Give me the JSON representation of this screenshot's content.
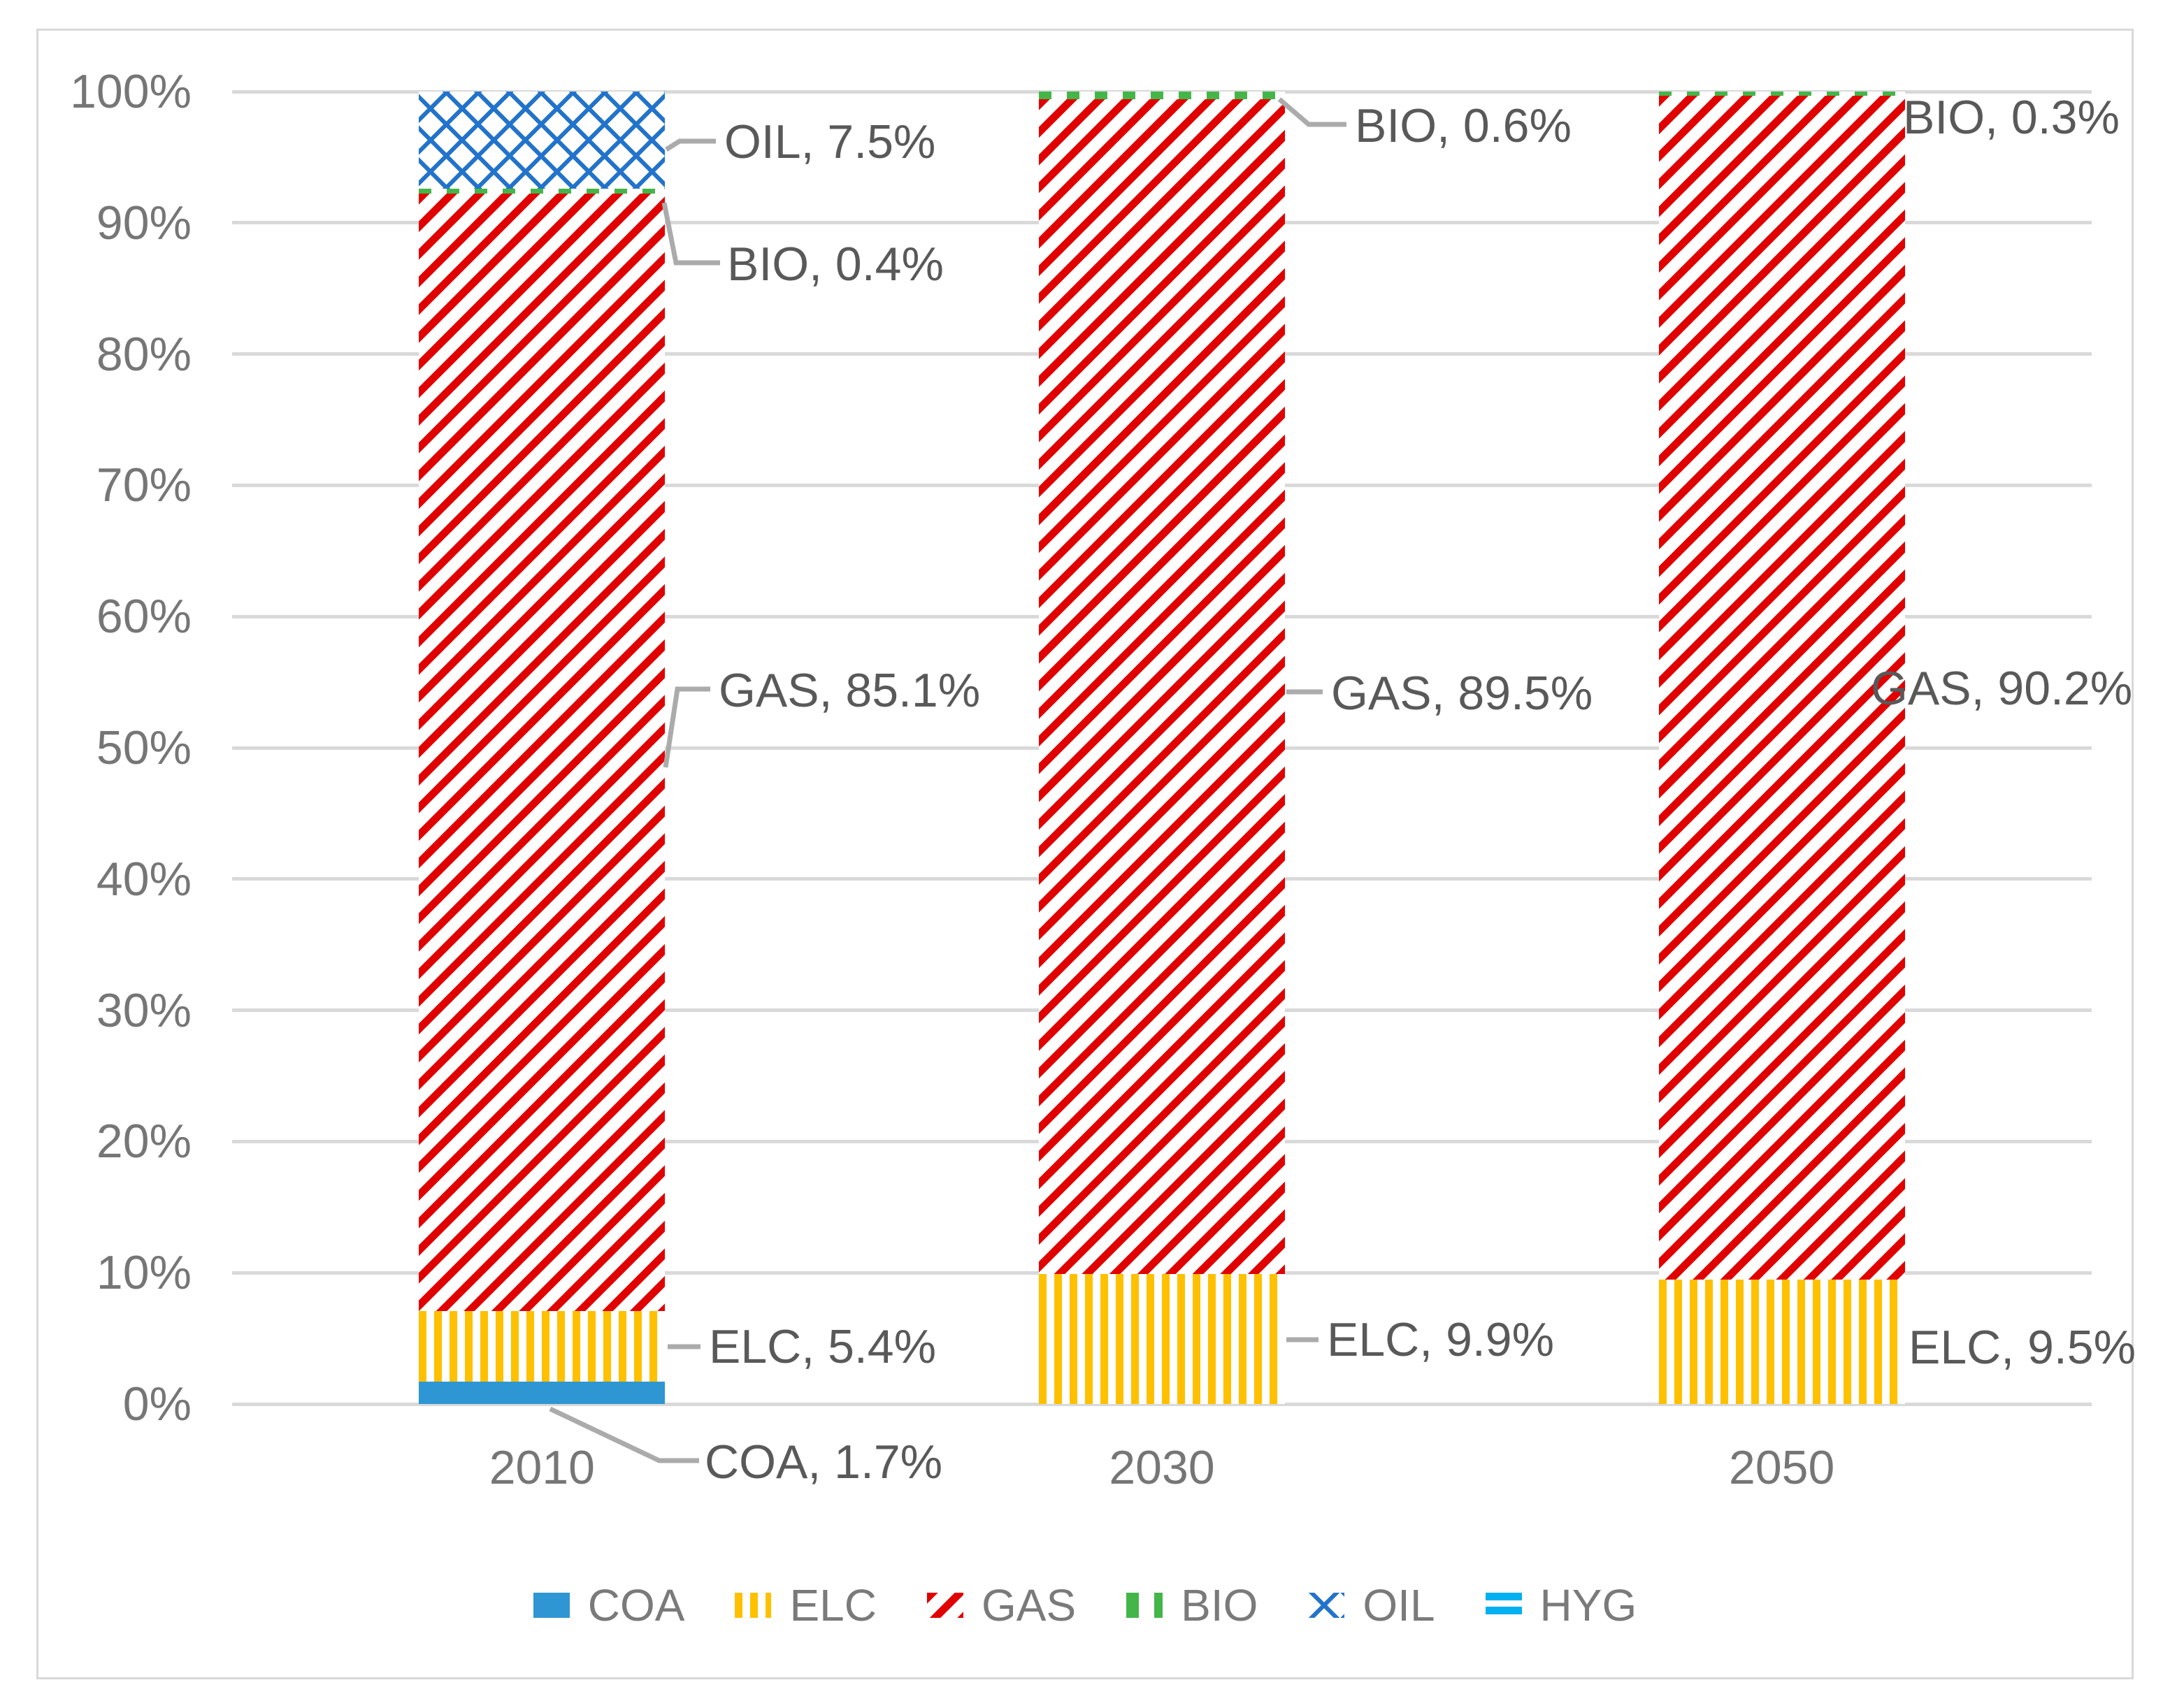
{
  "window": {
    "background": "#FFFFFF",
    "frame_border_color": "#D9D9D9"
  },
  "chart_data": {
    "type": "bar",
    "stacked": true,
    "unit": "percent",
    "title": "",
    "xlabel": "",
    "ylabel": "",
    "categories": [
      "2010",
      "2030",
      "2050"
    ],
    "series": [
      {
        "name": "COA",
        "pattern": "solid",
        "color": "#2E96D2",
        "values": [
          1.7,
          0,
          0
        ]
      },
      {
        "name": "ELC",
        "pattern": "vertical-stripes",
        "color": "#FFC000",
        "values": [
          5.4,
          9.9,
          9.5
        ]
      },
      {
        "name": "GAS",
        "pattern": "diagonal-stripes",
        "color": "#E10000",
        "values": [
          85.1,
          89.5,
          90.2
        ]
      },
      {
        "name": "BIO",
        "pattern": "dashes",
        "color": "#44B649",
        "values": [
          0.4,
          0.6,
          0.3
        ]
      },
      {
        "name": "OIL",
        "pattern": "diamond-lattice",
        "color": "#2273CB",
        "values": [
          7.5,
          0,
          0
        ]
      },
      {
        "name": "HYG",
        "pattern": "horizontal-stripes",
        "color": "#00B0F0",
        "values": [
          0,
          0,
          0
        ]
      }
    ],
    "ylim": [
      0,
      100
    ],
    "yticks": [
      "0%",
      "10%",
      "20%",
      "30%",
      "40%",
      "50%",
      "60%",
      "70%",
      "80%",
      "90%",
      "100%"
    ],
    "grid": true,
    "legend_position": "bottom",
    "legend": [
      "COA",
      "ELC",
      "GAS",
      "BIO",
      "OIL",
      "HYG"
    ]
  },
  "labels": {
    "oil_2010": "OIL, 7.5%",
    "bio_2010": "BIO, 0.4%",
    "gas_2010": "GAS, 85.1%",
    "elc_2010": "ELC, 5.4%",
    "coa_2010": "COA, 1.7%",
    "bio_2030": "BIO, 0.6%",
    "gas_2030": "GAS, 89.5%",
    "elc_2030": "ELC, 9.9%",
    "bio_2050": "BIO, 0.3%",
    "gas_2050": "GAS, 90.2%",
    "elc_2050": "ELC, 9.5%"
  },
  "colors": {
    "gridline": "#D9D9D9",
    "tick_text": "#767676",
    "data_label_text": "#595959",
    "leader_line": "#ABABAB",
    "legend_text": "#7A7A7A"
  }
}
